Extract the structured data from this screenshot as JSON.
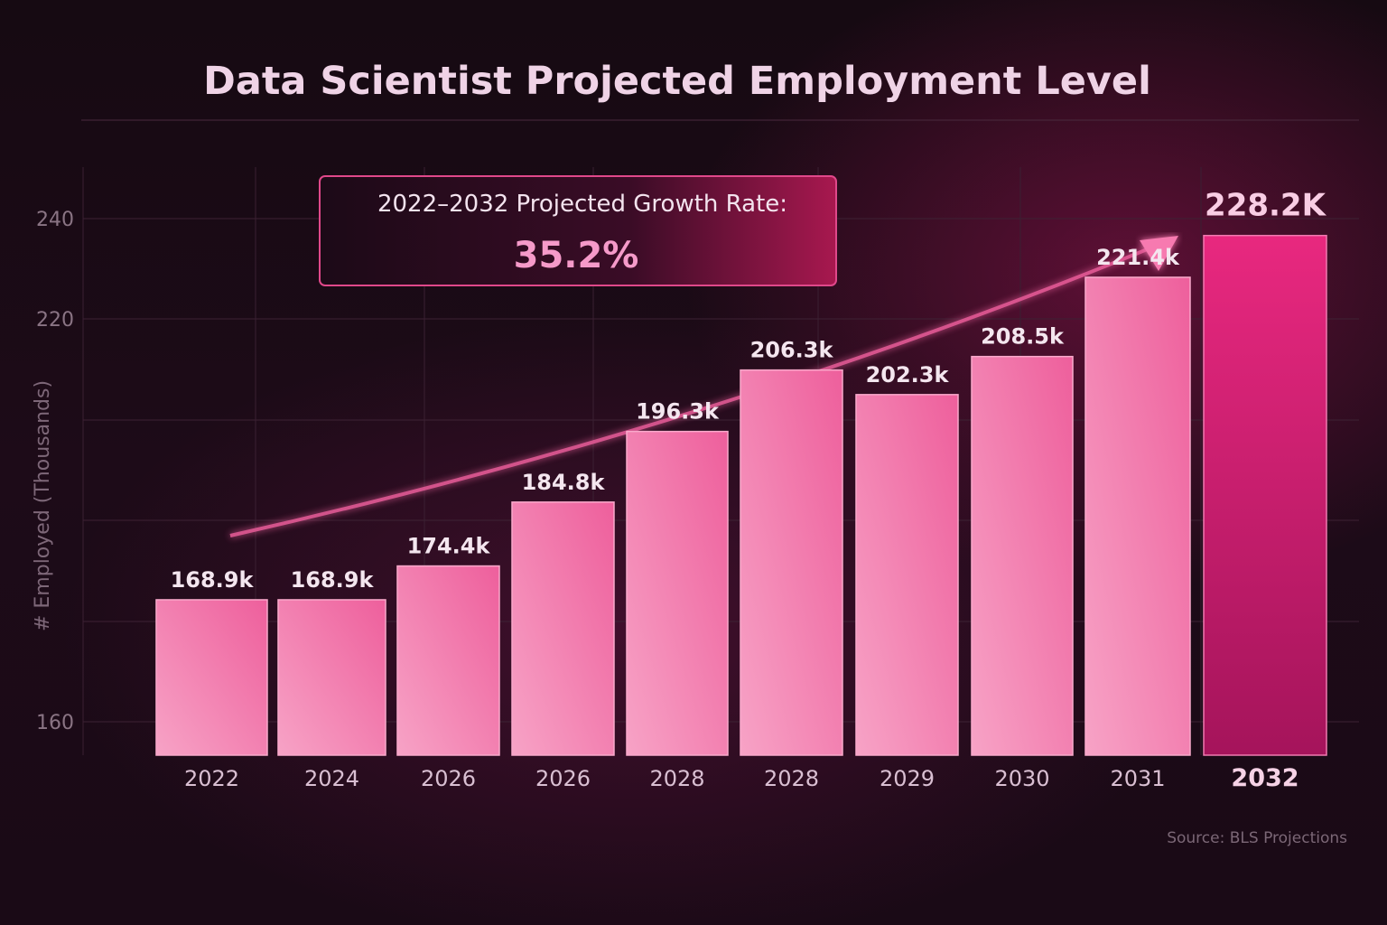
{
  "chart_data": {
    "type": "bar",
    "title": "Data Scientist Projected Employment Level",
    "xlabel": "",
    "ylabel": "# Employed (Thousands)",
    "categories": [
      "2022",
      "2024",
      "2026",
      "2026",
      "2028",
      "2028",
      "2029",
      "2030",
      "2031",
      "2032"
    ],
    "values": [
      168.9,
      168.9,
      174.4,
      184.8,
      196.3,
      206.3,
      202.3,
      208.5,
      221.4,
      228.2
    ],
    "data_labels": [
      "168.9k",
      "168.9k",
      "174.4k",
      "184.8k",
      "196.3k",
      "206.3k",
      "202.3k",
      "208.5k",
      "221.4k",
      "228.2K"
    ],
    "y_ticks": [
      {
        "value": 240,
        "label": "240"
      },
      {
        "value": 220,
        "label": "220"
      },
      {
        "value": 160,
        "label": "160"
      }
    ],
    "ylim": [
      143,
      240
    ],
    "grid": true,
    "highlight_index": 9,
    "annotation": {
      "label": "2022–2032 Projected Growth Rate:",
      "value": "35.2%"
    },
    "source": "Source: BLS Projections",
    "colors": {
      "bar_light": "#f58fb8",
      "bar_dark": "#d8287a",
      "highlight": "#c81a6c",
      "accent": "#ff6aa8"
    }
  }
}
